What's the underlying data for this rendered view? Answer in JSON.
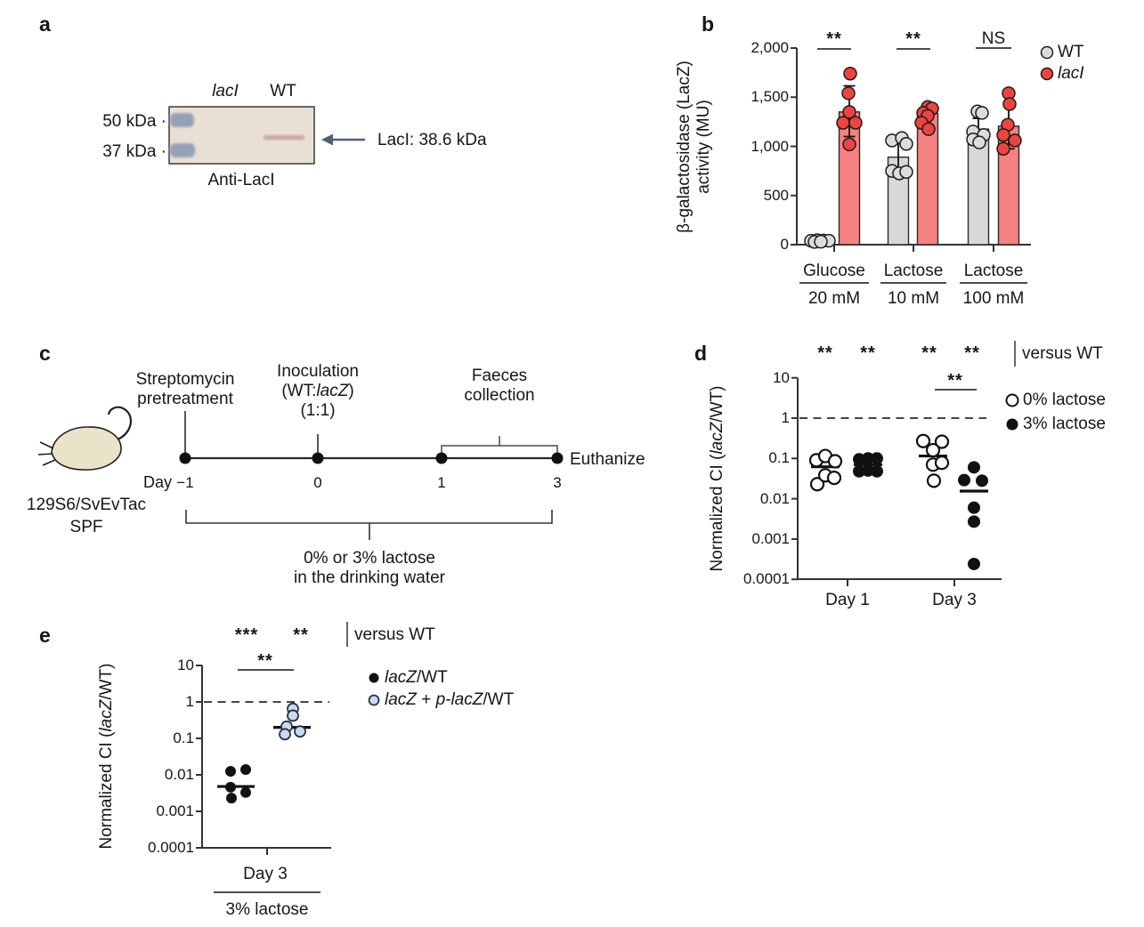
{
  "colors": {
    "wt_fill": "#dcdcdc",
    "wt_bar": "#d8d8d8",
    "laci_bar": "#f68181",
    "laci_point": "#ee4340",
    "open_blue": "#cdd9ec",
    "blot_bg": "#e9e0d5",
    "ladder_band": "#97a1b6",
    "protein_band": "#c49a8b",
    "arrow": "#4e6175"
  },
  "panel_a": {
    "letter": "a",
    "lane_laci": "lacI",
    "lane_wt": "WT",
    "marker_50": "50 kDa ·",
    "marker_37": "37 kDa ·",
    "band_label": "LacI: 38.6 kDa",
    "caption": "Anti-LacI"
  },
  "panel_b": {
    "letter": "b",
    "ylabel_line1": "β-galactosidase (LacZ)",
    "ylabel_line2": "activity (MU)"
  },
  "panel_c": {
    "letter": "c",
    "pretreatment_l1": "Streptomycin",
    "pretreatment_l2": "pretreatment",
    "inoculation_l1": "Inoculation",
    "inoculation_l2_html": "(WT:<i>lacZ</i>)",
    "inoculation_l3": "(1:1)",
    "faeces_l1": "Faeces",
    "faeces_l2": "collection",
    "euthanize": "Euthanize",
    "day_label": "Day",
    "day_ticks": [
      "−1",
      "0",
      "1",
      "3"
    ],
    "strain_l1": "129S6/SvEvTac",
    "strain_l2": "SPF",
    "water_l1": "0% or 3% lactose",
    "water_l2": "in the drinking water"
  },
  "panel_d": {
    "letter": "d",
    "ylabel_html": "Normalized CI (<i>lacZ</i>/WT)",
    "versus": "versus WT"
  },
  "panel_e": {
    "letter": "e",
    "ylabel_html": "Normalized CI (<i>lacZ</i>/WT)",
    "versus": "versus WT",
    "xlabel": "Day 3",
    "xsub": "3% lactose"
  },
  "chart_data": [
    {
      "panel": "b",
      "type": "bar",
      "ylabel": "β-galactosidase (LacZ) activity (MU)",
      "ylim": [
        0,
        2000
      ],
      "yticks": [
        0,
        500,
        1000,
        1500,
        2000
      ],
      "ytick_labels": [
        "0",
        "500",
        "1,000",
        "1,500",
        "2,000"
      ],
      "grid": false,
      "legend_position": "right",
      "legend": [
        {
          "label": "WT",
          "italic": false,
          "series": "WT"
        },
        {
          "label": "lacI",
          "italic": true,
          "series": "lacI"
        }
      ],
      "groups": [
        {
          "condition": "Glucose",
          "concentration": "20 mM",
          "significance": "**",
          "series": [
            {
              "name": "WT",
              "mean": 35,
              "err": [
                15,
                60
              ],
              "points": [
                40,
                45,
                42,
                40,
                28,
                30
              ],
              "dx": [
                -10,
                -3,
                4,
                10,
                -6,
                1
              ]
            },
            {
              "name": "lacI",
              "mean": 1350,
              "err": [
                1100,
                1615
              ],
              "points": [
                1740,
                1540,
                1350,
                1240,
                1240,
                1020
              ],
              "dx": [
                1,
                -1,
                0,
                -7,
                7,
                0
              ]
            }
          ]
        },
        {
          "condition": "Lactose",
          "concentration": "10 mM",
          "significance": "**",
          "series": [
            {
              "name": "WT",
              "mean": 890,
              "err": [
                725,
                1060
              ],
              "points": [
                1060,
                1085,
                1025,
                750,
                725,
                740
              ],
              "dx": [
                -7,
                4,
                9,
                -7,
                1,
                9
              ]
            },
            {
              "name": "lacI",
              "mean": 1335,
              "err": [
                1220,
                1400
              ],
              "points": [
                1400,
                1385,
                1340,
                1310,
                1240,
                1175
              ],
              "dx": [
                0,
                5,
                -5,
                0,
                -7,
                1
              ]
            }
          ]
        },
        {
          "condition": "Lactose",
          "concentration": "100 mM",
          "significance": "NS",
          "series": [
            {
              "name": "WT",
              "mean": 1175,
              "err": [
                1040,
                1285
              ],
              "points": [
                1355,
                1340,
                1150,
                1115,
                1070,
                1040
              ],
              "dx": [
                -1,
                4,
                -6,
                6,
                -6,
                1
              ]
            },
            {
              "name": "lacI",
              "mean": 1205,
              "err": [
                975,
                1420
              ],
              "points": [
                1540,
                1430,
                1220,
                1115,
                1060,
                975
              ],
              "dx": [
                0,
                1,
                -1,
                -6,
                7,
                -6
              ]
            }
          ]
        }
      ]
    },
    {
      "panel": "d",
      "type": "scatter-log",
      "ylabel": "Normalized CI (lacZ/WT)",
      "ylim": [
        0.0001,
        10
      ],
      "yticks": [
        10,
        1,
        0.1,
        0.01,
        0.001,
        0.0001
      ],
      "ytick_labels": [
        "10",
        "1",
        "0.1",
        "0.01",
        "0.001",
        "0.0001"
      ],
      "reference_line": 1,
      "annotation": "versus WT",
      "series_sig": [
        "**",
        "**",
        "**",
        "**"
      ],
      "comparison": {
        "label": "**",
        "between": [
          "Day 3 0% lactose",
          "Day 3 3% lactose"
        ]
      },
      "x_groups": [
        "Day 1",
        "Day 3"
      ],
      "legend": [
        {
          "label_html": "0% lactose",
          "style": "open"
        },
        {
          "label_html": "3% lactose",
          "style": "filled"
        }
      ],
      "clusters": [
        {
          "day": "Day 1",
          "treatment": "0% lactose",
          "style": "open",
          "median": 0.062,
          "points": [
            0.09,
            0.115,
            0.085,
            0.023,
            0.038,
            0.033
          ],
          "dx": [
            -10,
            0,
            11,
            -9,
            0,
            10
          ]
        },
        {
          "day": "Day 1",
          "treatment": "3% lactose",
          "style": "filled",
          "median": 0.07,
          "points": [
            0.095,
            0.1,
            0.1,
            0.048,
            0.05,
            0.048
          ],
          "dx": [
            -10,
            0,
            10,
            -10,
            0,
            10
          ]
        },
        {
          "day": "Day 3",
          "treatment": "0% lactose",
          "style": "open",
          "median": 0.115,
          "points": [
            0.27,
            0.26,
            0.16,
            0.07,
            0.078,
            0.028
          ],
          "dx": [
            -11,
            10,
            0,
            0,
            10,
            1
          ]
        },
        {
          "day": "Day 3",
          "treatment": "3% lactose",
          "style": "filled",
          "median": 0.0155,
          "points": [
            0.06,
            0.029,
            0.028,
            0.006,
            0.0027,
            0.00024
          ],
          "dx": [
            0,
            -11,
            9,
            0,
            0,
            0
          ]
        }
      ]
    },
    {
      "panel": "e",
      "type": "scatter-log",
      "ylabel": "Normalized CI (lacZ/WT)",
      "ylim": [
        0.0001,
        10
      ],
      "yticks": [
        10,
        1,
        0.1,
        0.01,
        0.001,
        0.0001
      ],
      "ytick_labels": [
        "10",
        "1",
        "0.1",
        "0.01",
        "0.001",
        "0.0001"
      ],
      "reference_line": 1,
      "annotation": "versus WT",
      "series_sig": [
        "***",
        "**"
      ],
      "comparison": {
        "label": "**",
        "between": [
          "lacZ/WT",
          "lacZ + p-lacZ/WT"
        ]
      },
      "x_groups": [
        "Day 3"
      ],
      "x_sub": "3% lactose",
      "legend": [
        {
          "label_html": "<i>lacZ</i>/WT",
          "style": "filled"
        },
        {
          "label_html": "<i>lacZ</i> + <i>p-lacZ</i>/WT",
          "style": "open-blue"
        }
      ],
      "clusters": [
        {
          "name": "lacZ/WT",
          "style": "filled",
          "median": 0.0048,
          "points": [
            0.0125,
            0.014,
            0.0046,
            0.0033,
            0.0023
          ],
          "dx": [
            -6,
            11,
            -6,
            11,
            -5
          ]
        },
        {
          "name": "lacZ + p-lacZ/WT",
          "style": "open-blue",
          "median": 0.2,
          "points": [
            0.65,
            0.42,
            0.21,
            0.155,
            0.13
          ],
          "dx": [
            1,
            1,
            -6,
            9,
            -8
          ]
        }
      ]
    }
  ]
}
